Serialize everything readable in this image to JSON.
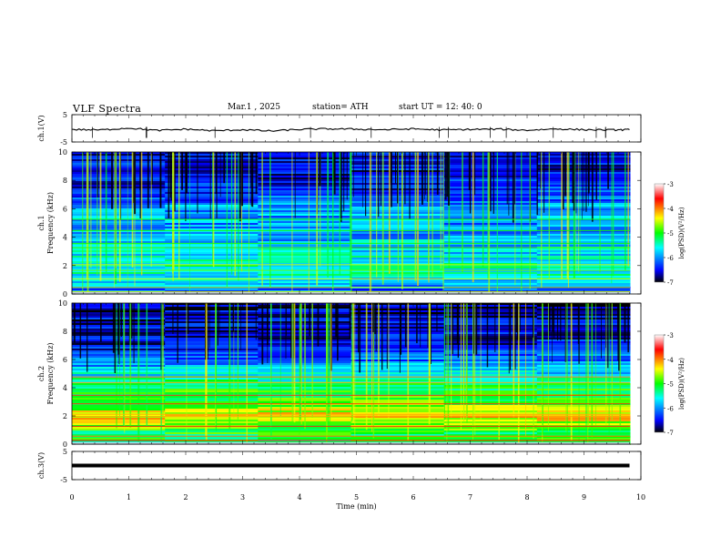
{
  "header": {
    "title": "VLF Spectra",
    "date": "Mar.1 , 2025",
    "station": "station= ATH",
    "start": "start UT = 12: 40: 0"
  },
  "colors": {
    "colormap": [
      "#000000",
      "#0000ff",
      "#00ffff",
      "#00ff00",
      "#ffff00",
      "#ff0000",
      "#ffffff"
    ],
    "trace": "#000000",
    "axis": "#000000"
  },
  "chart_data": [
    {
      "type": "line",
      "panel": "ch1-waveform",
      "ylabel": "ch.1(V)",
      "ylim": [
        -5,
        5
      ],
      "yticks": [
        "5",
        "-5"
      ],
      "x": [
        0,
        0.5,
        1,
        1.5,
        2,
        2.5,
        3,
        3.5,
        4,
        4.5,
        5,
        5.5,
        6,
        6.5,
        7,
        7.5,
        8,
        8.5,
        9,
        9.5,
        9.8
      ],
      "y": [
        -0.4,
        -0.6,
        0.1,
        -0.8,
        -0.3,
        -0.9,
        -0.5,
        -1.0,
        -0.4,
        -0.2,
        -0.3,
        -0.5,
        -0.2,
        -0.6,
        -0.4,
        -0.3,
        -0.7,
        -0.2,
        -0.5,
        -0.6,
        -0.5
      ]
    },
    {
      "type": "heatmap",
      "panel": "ch1-spectrogram",
      "ylabel": "ch.1\nFrequency (kHz)",
      "xlim": [
        0,
        10
      ],
      "ylim": [
        0,
        10
      ],
      "yticks": [
        "0",
        "2",
        "4",
        "6",
        "8",
        "10"
      ],
      "colorbar": {
        "label": "log(PSD)(V²/Hz)",
        "range": [
          -7,
          -3
        ],
        "ticks": [
          "-3",
          "-4",
          "-5",
          "-6",
          "-7"
        ]
      },
      "profile": [
        {
          "f": 0.3,
          "v": -6.2
        },
        {
          "f": 1.2,
          "v": -5.6
        },
        {
          "f": 2.0,
          "v": -5.4
        },
        {
          "f": 3.0,
          "v": -5.7
        },
        {
          "f": 4.0,
          "v": -5.9
        },
        {
          "f": 5.0,
          "v": -6.0
        },
        {
          "f": 6.0,
          "v": -5.9
        },
        {
          "f": 7.0,
          "v": -6.3
        },
        {
          "f": 8.0,
          "v": -6.5
        },
        {
          "f": 9.0,
          "v": -6.5
        },
        {
          "f": 10.0,
          "v": -6.6
        }
      ]
    },
    {
      "type": "heatmap",
      "panel": "ch2-spectrogram",
      "ylabel": "ch.2\nFrequency (kHz)",
      "xlim": [
        0,
        10
      ],
      "ylim": [
        0,
        10
      ],
      "yticks": [
        "0",
        "2",
        "4",
        "6",
        "8",
        "10"
      ],
      "colorbar": {
        "label": "log(PSD)(V²/Hz)",
        "range": [
          -7,
          -3
        ],
        "ticks": [
          "-3",
          "-4",
          "-5",
          "-6",
          "-7"
        ]
      },
      "profile": [
        {
          "f": 0.3,
          "v": -5.2
        },
        {
          "f": 1.0,
          "v": -5.0
        },
        {
          "f": 2.0,
          "v": -4.3
        },
        {
          "f": 3.0,
          "v": -4.9
        },
        {
          "f": 4.0,
          "v": -5.1
        },
        {
          "f": 5.0,
          "v": -5.6
        },
        {
          "f": 6.0,
          "v": -6.1
        },
        {
          "f": 7.0,
          "v": -6.5
        },
        {
          "f": 8.0,
          "v": -6.6
        },
        {
          "f": 9.0,
          "v": -6.6
        },
        {
          "f": 10.0,
          "v": -6.7
        }
      ]
    },
    {
      "type": "line",
      "panel": "ch3-waveform",
      "ylabel": "ch.3(V)",
      "ylim": [
        -5,
        5
      ],
      "yticks": [
        "5",
        "-5"
      ],
      "x": [
        0,
        9.8
      ],
      "y": [
        0,
        0
      ]
    }
  ],
  "xaxis": {
    "label": "Time (min)",
    "ticks": [
      "0",
      "1",
      "2",
      "3",
      "4",
      "5",
      "6",
      "7",
      "8",
      "9",
      "10"
    ]
  }
}
